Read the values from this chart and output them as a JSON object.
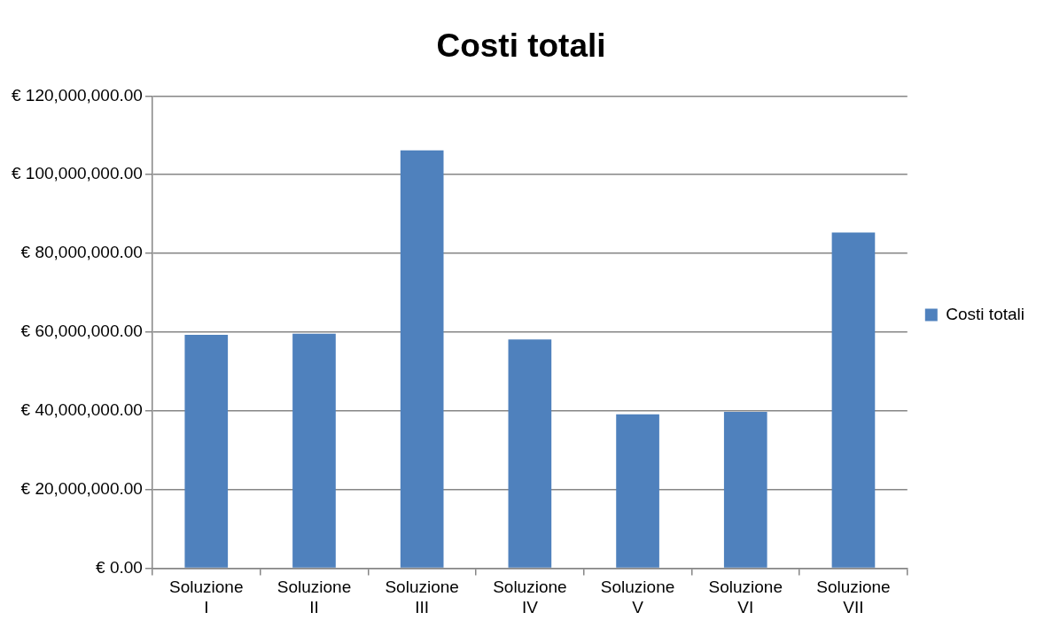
{
  "chart_data": {
    "type": "bar",
    "title": "Costi totali",
    "categories": [
      "Soluzione I",
      "Soluzione II",
      "Soluzione III",
      "Soluzione IV",
      "Soluzione V",
      "Soluzione VI",
      "Soluzione VII"
    ],
    "series": [
      {
        "name": "Costi totali",
        "color": "#4f81bd",
        "values": [
          59300000,
          59600000,
          106200000,
          58100000,
          39100000,
          39700000,
          85300000
        ]
      }
    ],
    "ylim": [
      0,
      120000000
    ],
    "yticks": [
      {
        "value": 0,
        "label": "€ 0.00"
      },
      {
        "value": 20000000,
        "label": "€ 20,000,000.00"
      },
      {
        "value": 40000000,
        "label": "€ 40,000,000.00"
      },
      {
        "value": 60000000,
        "label": "€ 60,000,000.00"
      },
      {
        "value": 80000000,
        "label": "€ 80,000,000.00"
      },
      {
        "value": 100000000,
        "label": "€ 100,000,000.00"
      },
      {
        "value": 120000000,
        "label": "€ 120,000,000.00"
      }
    ],
    "grid": "y",
    "legend": "right"
  }
}
